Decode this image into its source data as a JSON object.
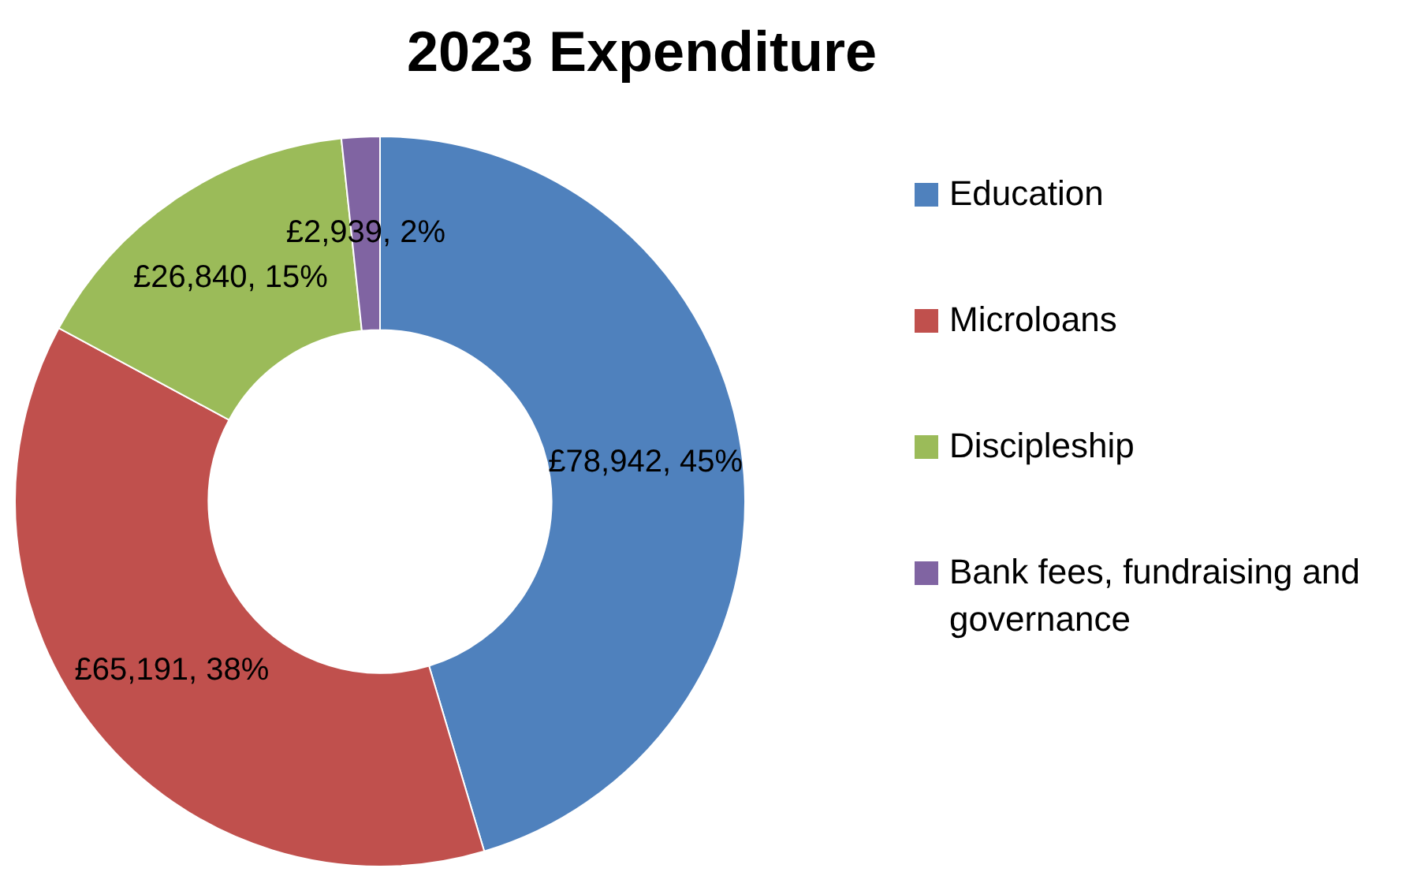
{
  "chart_data": {
    "type": "donut",
    "title": "2023 Expenditure",
    "categories": [
      "Education",
      "Microloans",
      "Discipleship",
      "Bank fees, fundraising and governance"
    ],
    "values": [
      78942,
      65191,
      26840,
      2939
    ],
    "colors": [
      "#4f81bd",
      "#c0504d",
      "#9bbb59",
      "#8064a2"
    ],
    "value_labels": [
      "£78,942, 45%",
      "£65,191, 38%",
      "£26,840, 15%",
      "£2,939, 2%"
    ],
    "legend": "right"
  }
}
